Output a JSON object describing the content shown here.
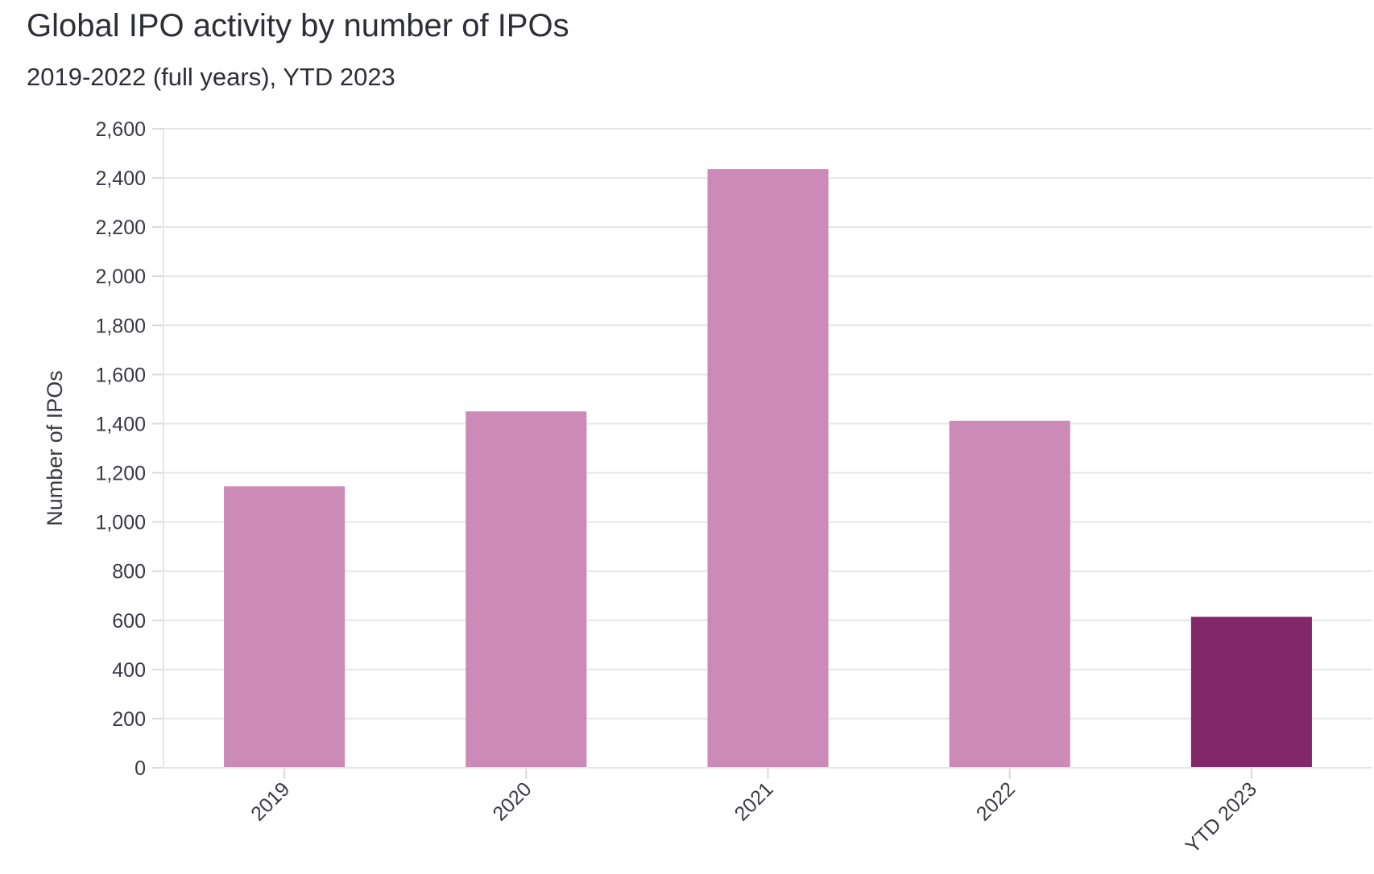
{
  "chart_data": {
    "type": "bar",
    "title": "Global IPO activity by number of IPOs",
    "subtitle": "2019-2022 (full years), YTD 2023",
    "xlabel": "",
    "ylabel": "Number of IPOs",
    "categories": [
      "2019",
      "2020",
      "2021",
      "2022",
      "YTD 2023"
    ],
    "values": [
      1145,
      1450,
      2436,
      1412,
      614
    ],
    "colors": [
      "#cc8ab7",
      "#cc8ab7",
      "#cc8ab7",
      "#cc8ab7",
      "#822868"
    ],
    "ylim": [
      0,
      2600
    ],
    "yticks": [
      0,
      200,
      400,
      600,
      800,
      1000,
      1200,
      1400,
      1600,
      1800,
      2000,
      2200,
      2400,
      2600
    ],
    "ytick_labels": [
      "0",
      "200",
      "400",
      "600",
      "800",
      "1,000",
      "1,200",
      "1,400",
      "1,600",
      "1,800",
      "2,000",
      "2,200",
      "2,400",
      "2,600"
    ],
    "grid": true,
    "legend": "none"
  }
}
